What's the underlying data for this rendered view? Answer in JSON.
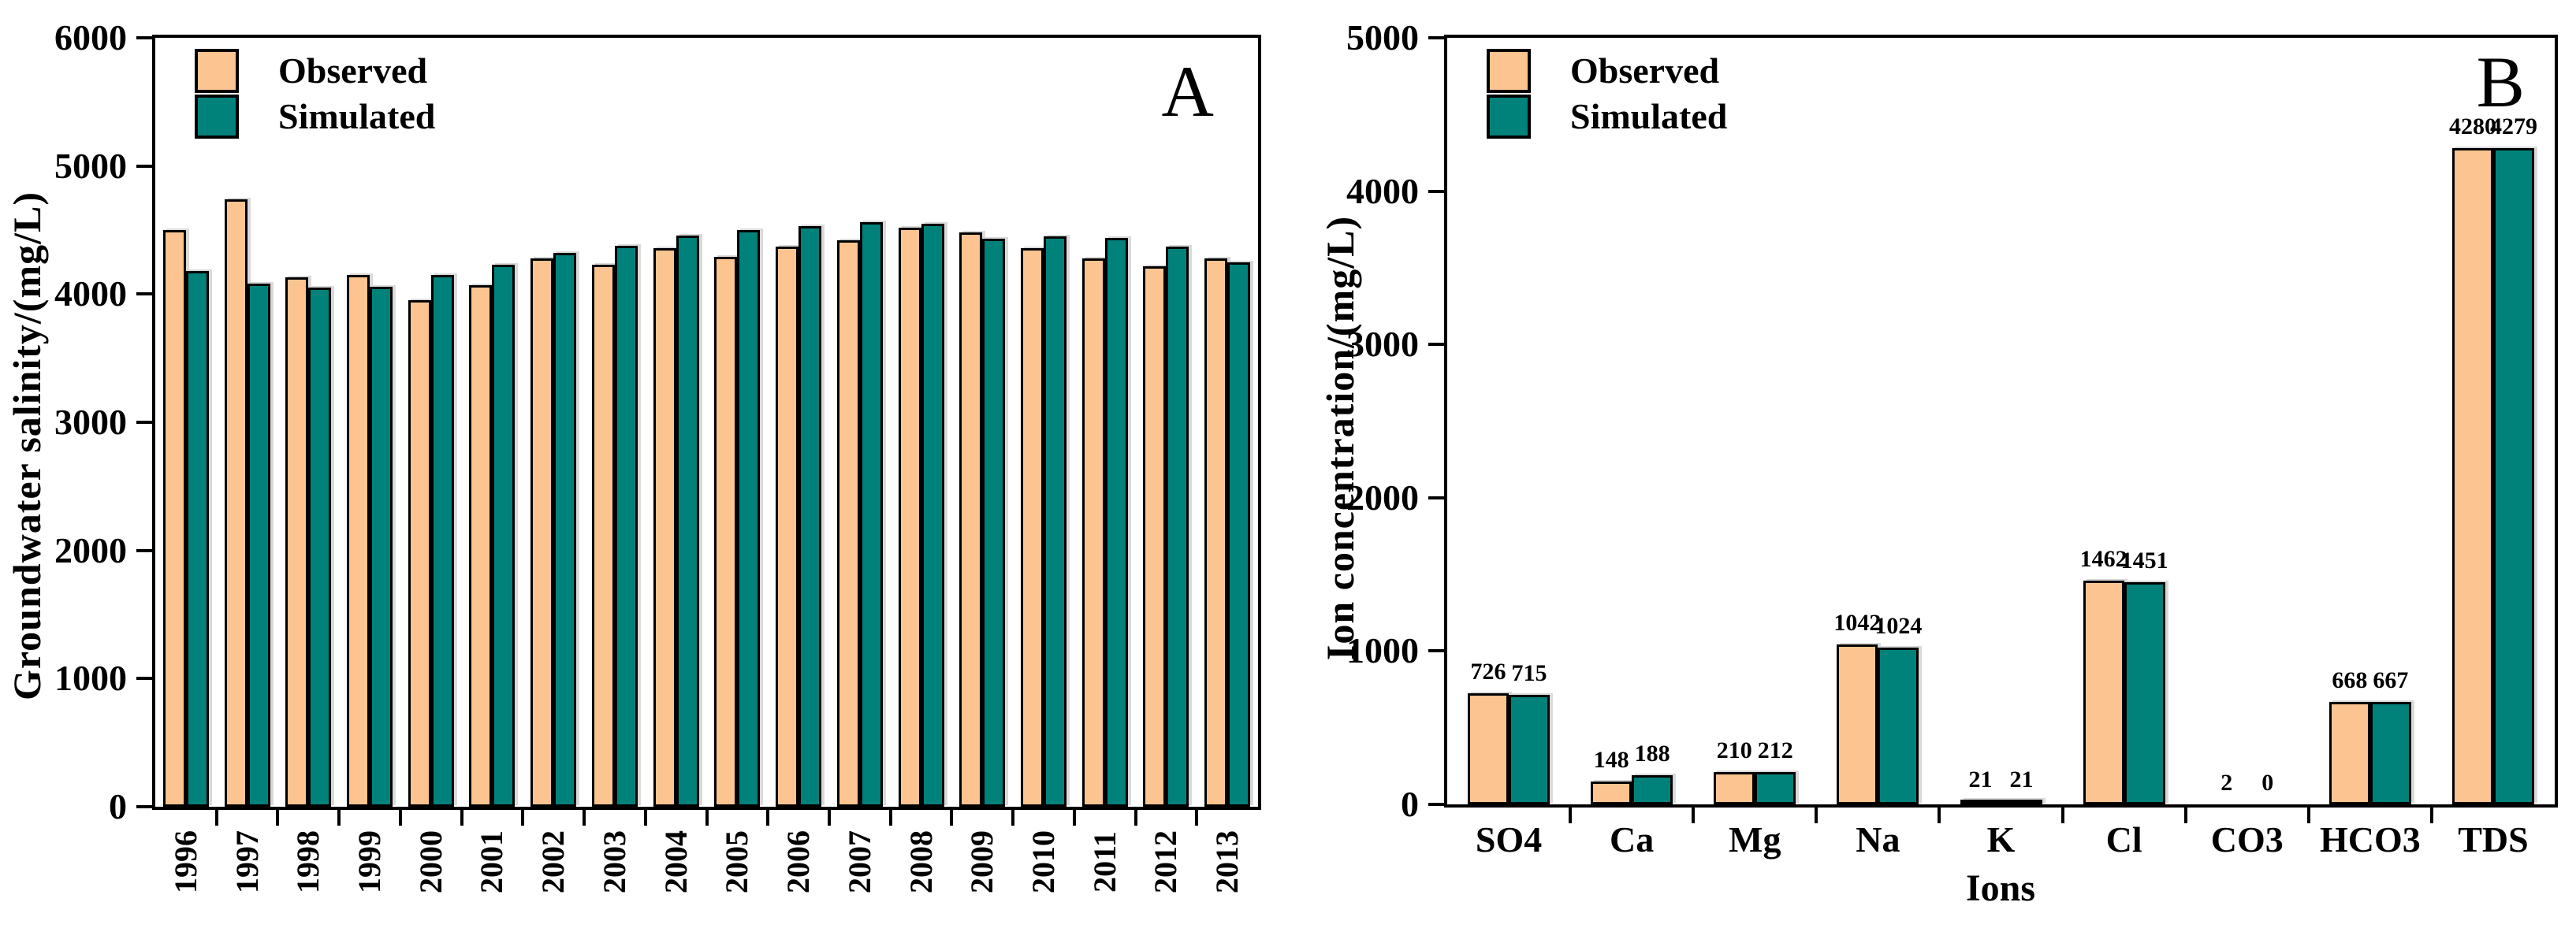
{
  "colors": {
    "observed": "#FBC491",
    "simulated": "#00827A",
    "axis": "#000000"
  },
  "chart_data": [
    {
      "type": "bar",
      "panel_label": "A",
      "title": "",
      "xlabel": "",
      "ylabel": "Groundwater salinity/(mg/L)",
      "categories": [
        "1996",
        "1997",
        "1998",
        "1999",
        "2000",
        "2001",
        "2002",
        "2003",
        "2004",
        "2005",
        "2006",
        "2007",
        "2008",
        "2009",
        "2010",
        "2011",
        "2012",
        "2013"
      ],
      "series": [
        {
          "name": "Observed",
          "values": [
            4500,
            4740,
            4130,
            4150,
            3950,
            4070,
            4280,
            4230,
            4360,
            4290,
            4370,
            4420,
            4520,
            4480,
            4360,
            4280,
            4220,
            4280
          ]
        },
        {
          "name": "Simulated",
          "values": [
            4180,
            4080,
            4050,
            4060,
            4150,
            4230,
            4320,
            4380,
            4460,
            4500,
            4530,
            4560,
            4550,
            4430,
            4450,
            4440,
            4370,
            4250
          ]
        }
      ],
      "ylim": [
        0,
        6000
      ],
      "ytick_step": 1000,
      "grid": false,
      "legend_position": "top-left",
      "value_labels": false
    },
    {
      "type": "bar",
      "panel_label": "B",
      "title": "",
      "xlabel": "Ions",
      "ylabel": "Ion concentration/(mg/L)",
      "categories": [
        "SO4",
        "Ca",
        "Mg",
        "Na",
        "K",
        "Cl",
        "CO3",
        "HCO3",
        "TDS"
      ],
      "series": [
        {
          "name": "Observed",
          "values": [
            726,
            148,
            210,
            1042,
            21,
            1462,
            2,
            668,
            4280
          ]
        },
        {
          "name": "Simulated",
          "values": [
            715,
            188,
            212,
            1024,
            21,
            1451,
            0,
            667,
            4279
          ]
        }
      ],
      "ylim": [
        0,
        5000
      ],
      "ytick_step": 1000,
      "grid": false,
      "legend_position": "top-left",
      "value_labels": true
    }
  ]
}
